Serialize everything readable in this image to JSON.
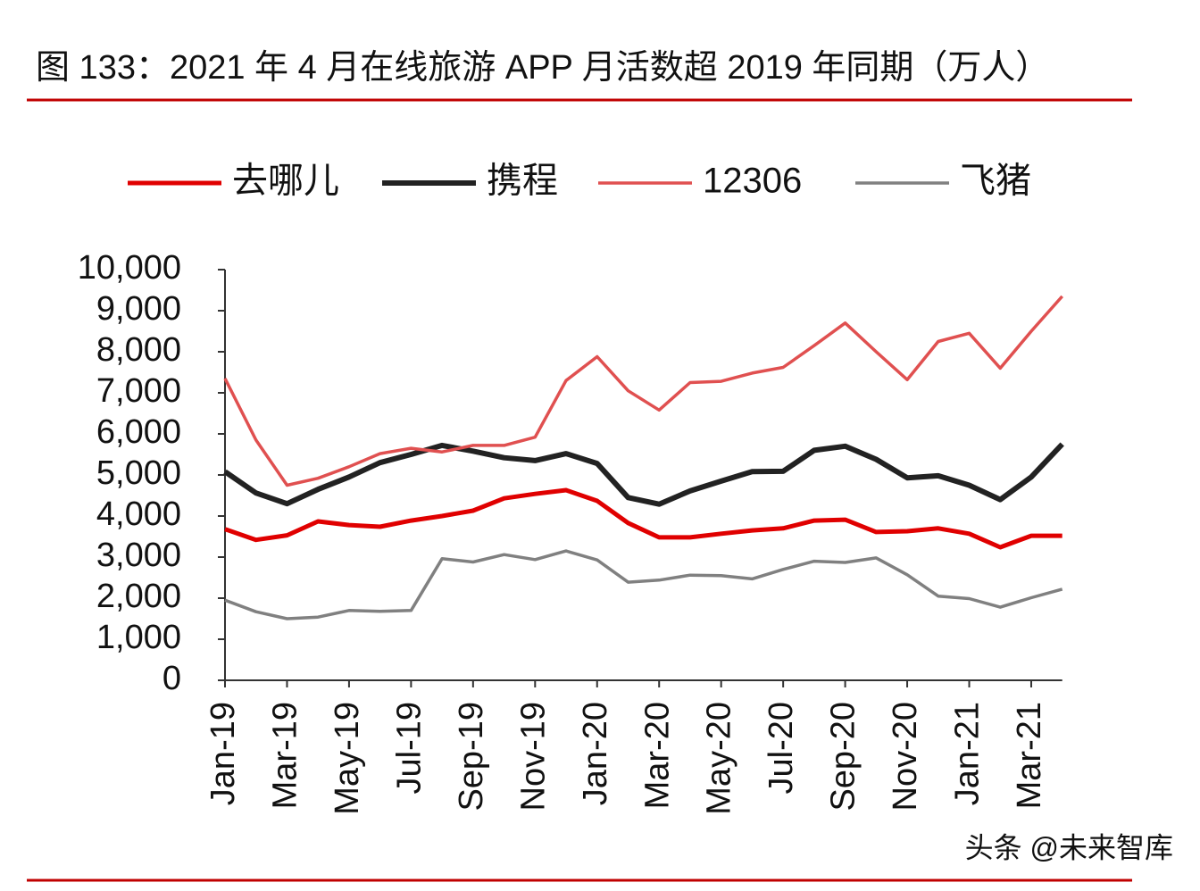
{
  "chart_data": {
    "type": "line",
    "title": "图 133：2021 年 4 月在线旅游 APP 月活数超 2019 年同期（万人）",
    "watermark": "头条 @未来智库",
    "categories": [
      "Jan-19",
      null,
      "Mar-19",
      null,
      "May-19",
      null,
      "Jul-19",
      null,
      "Sep-19",
      null,
      "Nov-19",
      null,
      "Jan-20",
      null,
      "Mar-20",
      null,
      "May-20",
      null,
      "Jul-20",
      null,
      "Sep-20",
      null,
      "Nov-20",
      null,
      "Jan-21",
      null,
      "Mar-21",
      null
    ],
    "series": [
      {
        "name": "去哪儿",
        "color": "#e00000",
        "line_width": 5,
        "values": [
          3680,
          3420,
          3530,
          3870,
          3780,
          3740,
          3890,
          4000,
          4130,
          4430,
          4540,
          4630,
          4370,
          3830,
          3480,
          3480,
          3570,
          3650,
          3700,
          3890,
          3910,
          3610,
          3630,
          3700,
          3570,
          3240,
          3520,
          3520
        ]
      },
      {
        "name": "携程",
        "color": "#222222",
        "line_width": 6,
        "values": [
          5080,
          4560,
          4300,
          4650,
          4950,
          5300,
          5500,
          5720,
          5580,
          5420,
          5350,
          5520,
          5280,
          4450,
          4290,
          4610,
          4850,
          5080,
          5090,
          5600,
          5700,
          5380,
          4930,
          4980,
          4750,
          4400,
          4950,
          5750
        ]
      },
      {
        "name": "12306",
        "color": "#e05050",
        "line_width": 3.5,
        "values": [
          7350,
          5850,
          4750,
          4920,
          5200,
          5520,
          5650,
          5560,
          5720,
          5720,
          5920,
          7300,
          7880,
          7050,
          6580,
          7250,
          7280,
          7480,
          7620,
          8150,
          8700,
          8000,
          7320,
          8250,
          8450,
          7600,
          8500,
          9350
        ]
      },
      {
        "name": "飞猪",
        "color": "#808080",
        "line_width": 3.5,
        "values": [
          1950,
          1670,
          1500,
          1540,
          1700,
          1680,
          1700,
          2960,
          2880,
          3060,
          2940,
          3150,
          2930,
          2390,
          2440,
          2560,
          2550,
          2470,
          2700,
          2900,
          2870,
          2980,
          2570,
          2050,
          1990,
          1780,
          2010,
          2220
        ]
      }
    ],
    "ylim": [
      0,
      10000
    ],
    "yticks": [
      0,
      {
        "value": 1000,
        "label": "1,000"
      },
      {
        "value": 2000,
        "label": "2,000"
      },
      {
        "value": 3000,
        "label": "3,000"
      },
      {
        "value": 4000,
        "label": "4,000"
      },
      {
        "value": 5000,
        "label": "5,000"
      },
      {
        "value": 6000,
        "label": "6,000"
      },
      {
        "value": 7000,
        "label": "7,000"
      },
      {
        "value": 8000,
        "label": "8,000"
      },
      {
        "value": 9000,
        "label": "9,000"
      },
      {
        "value": 10000,
        "label": "10,000"
      }
    ],
    "grid": false
  }
}
